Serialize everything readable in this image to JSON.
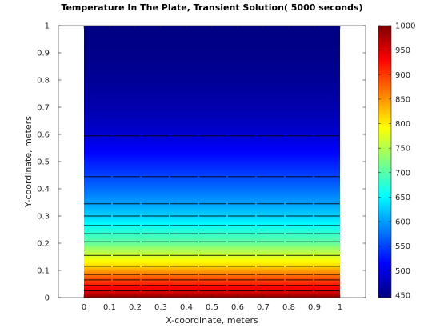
{
  "chart_data": {
    "type": "heatmap",
    "title": "Temperature In The Plate, Transient Solution( 5000 seconds)",
    "xlabel": "X-coordinate, meters",
    "ylabel": "Y-coordinate, meters",
    "xlim": [
      -0.1,
      1.1
    ],
    "ylim": [
      0,
      1
    ],
    "x_ticks": [
      0,
      0.1,
      0.2,
      0.3,
      0.4,
      0.5,
      0.6,
      0.7,
      0.8,
      0.9,
      1
    ],
    "x_tick_labels": [
      "0",
      "0.1",
      "0.2",
      "0.3",
      "0.4",
      "0.5",
      "0.6",
      "0.7",
      "0.8",
      "0.9",
      "1"
    ],
    "y_ticks": [
      0,
      0.1,
      0.2,
      0.3,
      0.4,
      0.5,
      0.6,
      0.7,
      0.8,
      0.9,
      1
    ],
    "y_tick_labels": [
      "0",
      "0.1",
      "0.2",
      "0.3",
      "0.4",
      "0.5",
      "0.6",
      "0.7",
      "0.8",
      "0.9",
      "1"
    ],
    "data_x_range": [
      0,
      1
    ],
    "data_y_range": [
      0,
      1
    ],
    "colormap": "jet",
    "colorbar": {
      "range": [
        445,
        1000
      ],
      "ticks": [
        450,
        500,
        550,
        600,
        650,
        700,
        750,
        800,
        850,
        900,
        950,
        1000
      ],
      "tick_labels": [
        "450",
        "500",
        "550",
        "600",
        "650",
        "700",
        "750",
        "800",
        "850",
        "900",
        "950",
        "1000"
      ]
    },
    "profile_along_y": {
      "y": [
        0,
        0.02,
        0.05,
        0.08,
        0.1,
        0.12,
        0.15,
        0.18,
        0.2,
        0.25,
        0.3,
        0.35,
        0.4,
        0.45,
        0.5,
        0.55,
        0.6,
        0.7,
        0.8,
        0.9,
        1
      ],
      "temperature": [
        1000,
        955,
        915,
        875,
        845,
        810,
        775,
        740,
        710,
        670,
        630,
        600,
        575,
        550,
        530,
        510,
        490,
        470,
        458,
        450,
        447
      ]
    },
    "contour_levels_y": [
      0.025,
      0.045,
      0.065,
      0.085,
      0.115,
      0.155,
      0.175,
      0.205,
      0.235,
      0.265,
      0.3,
      0.345,
      0.445,
      0.595
    ],
    "grid": false,
    "legend": "none"
  }
}
